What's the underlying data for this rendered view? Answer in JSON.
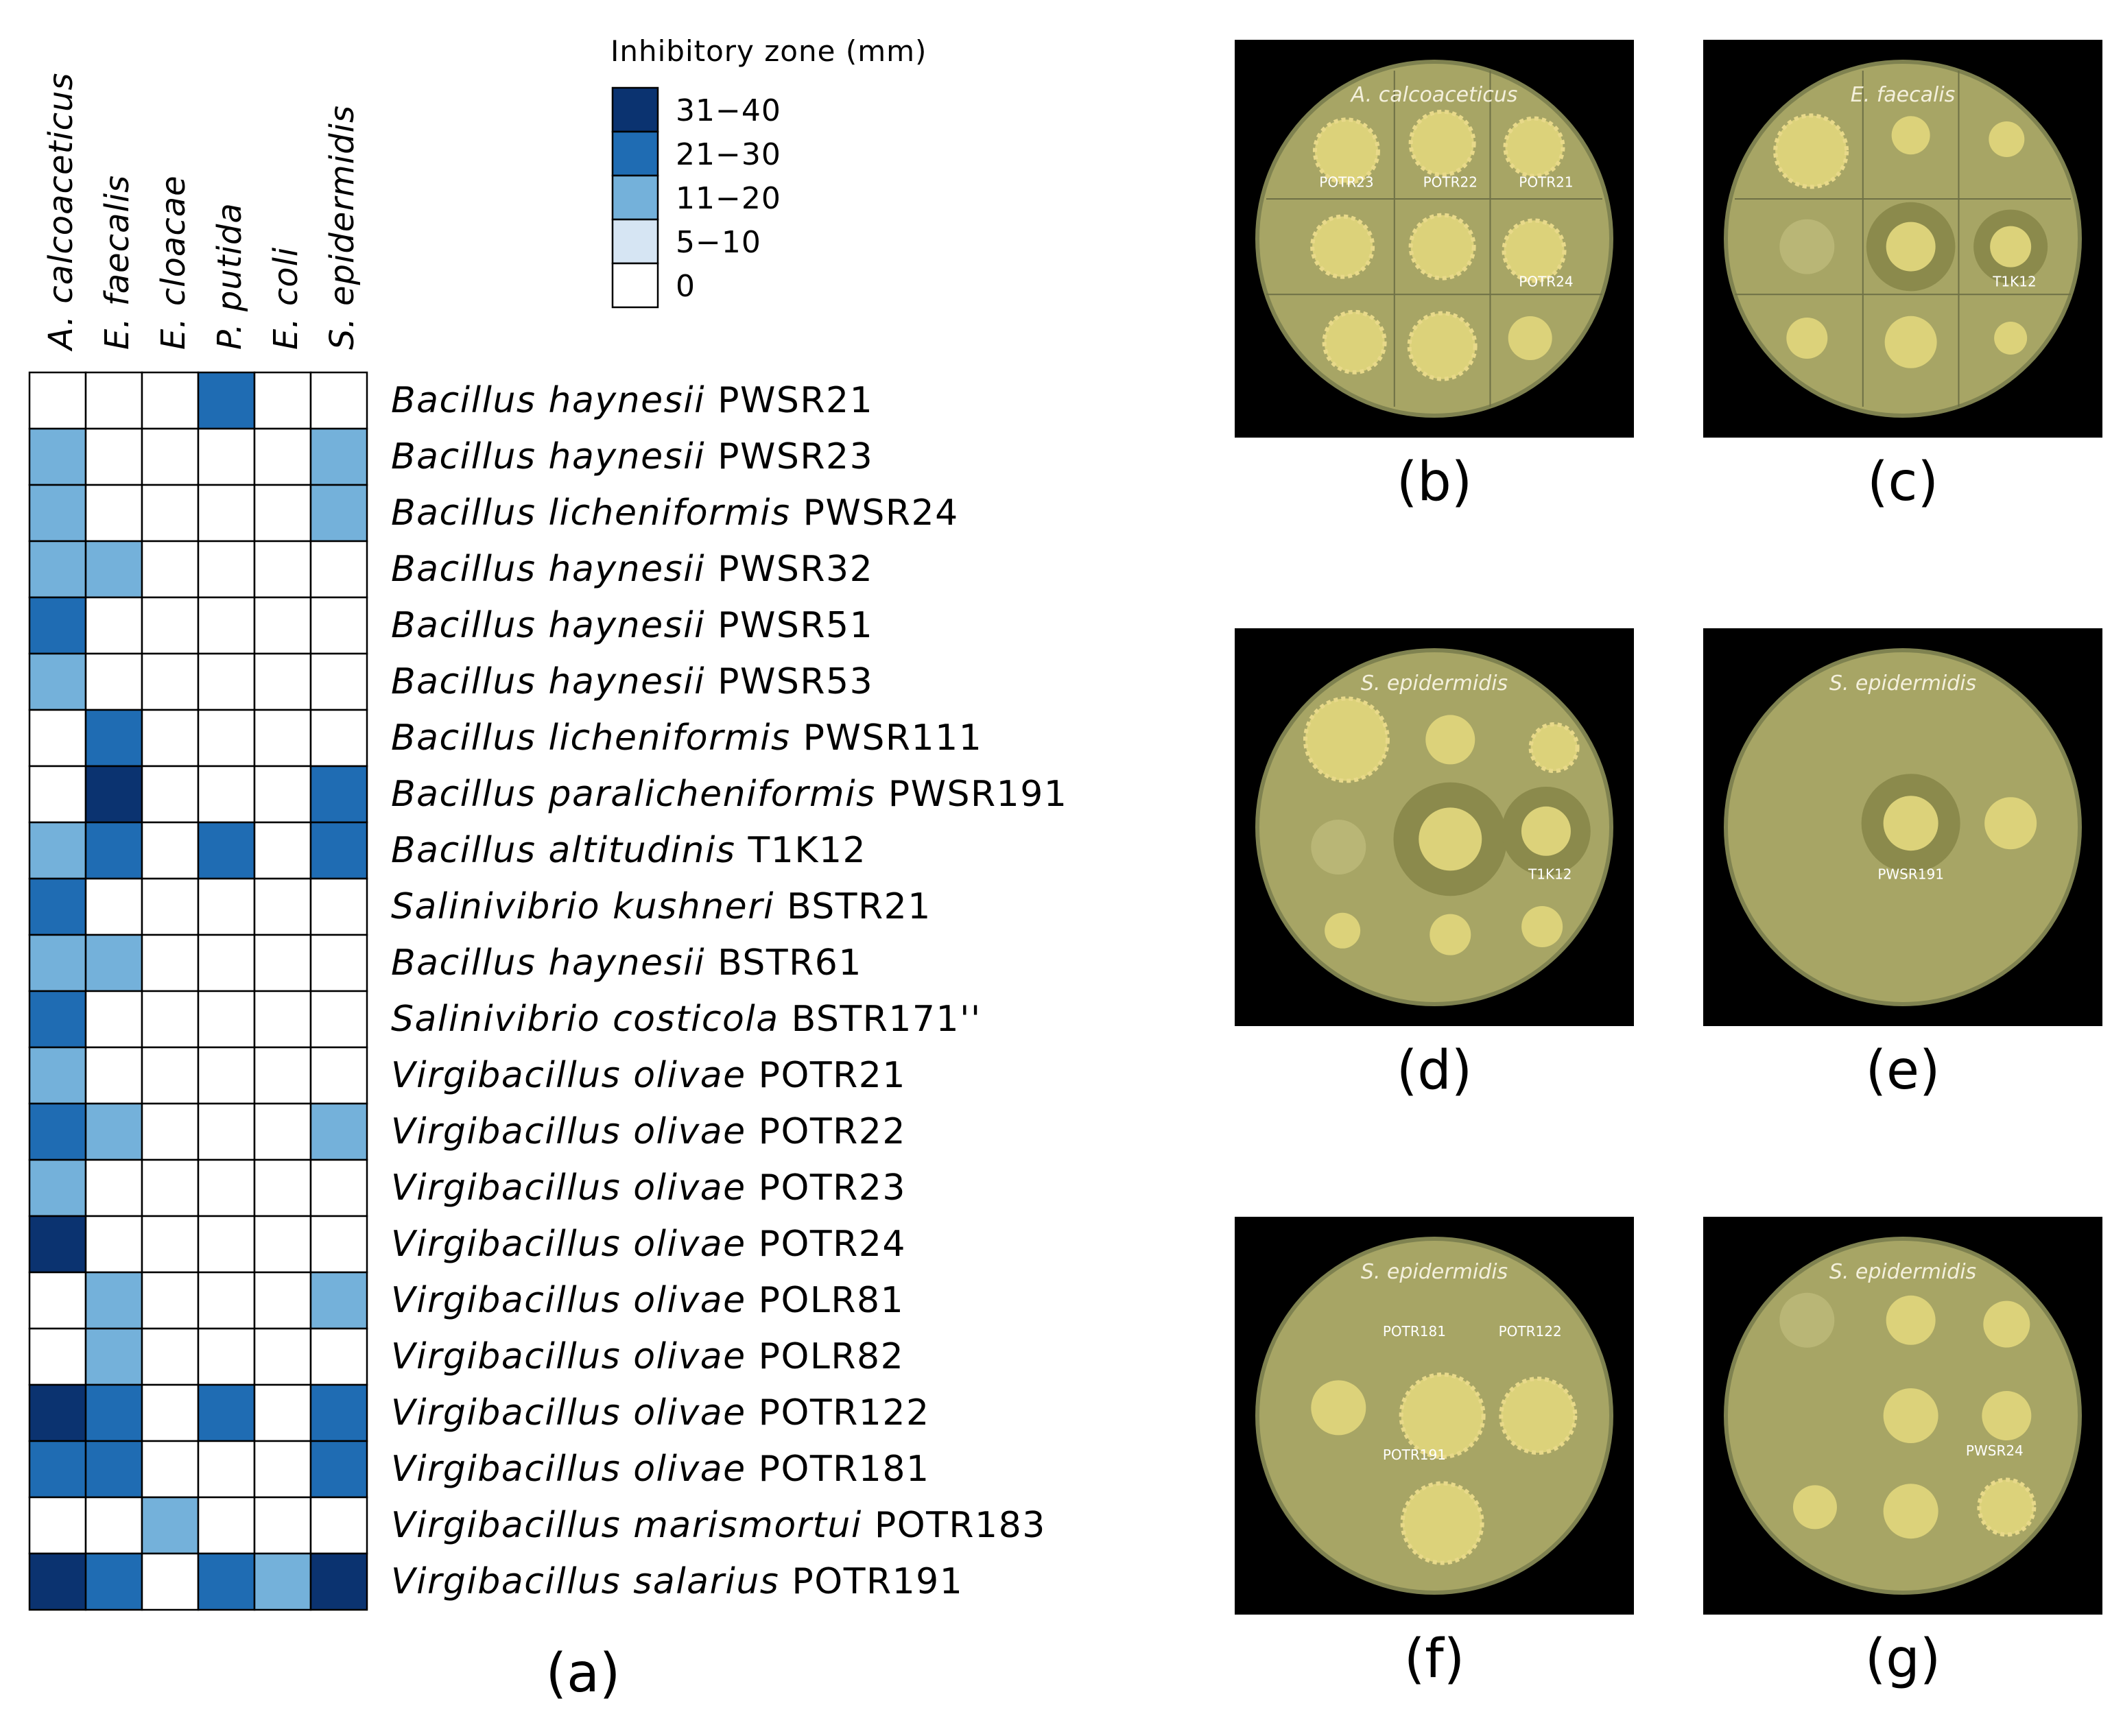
{
  "chart_data": {
    "type": "heatmap",
    "legend_title": "Inhibitory zone (mm)",
    "legend": [
      {
        "label": "31−40",
        "color": "#0b3370"
      },
      {
        "label": "21−30",
        "color": "#1f6cb3"
      },
      {
        "label": "11−20",
        "color": "#74b1da"
      },
      {
        "label": "5−10",
        "color": "#d6e5f3"
      },
      {
        "label": "0",
        "color": "#ffffff"
      }
    ],
    "columns": [
      "A. calcoaceticus",
      "E. faecalis",
      "E. cloacae",
      "P. putida",
      "E. coli",
      "S. epidermidis"
    ],
    "rows": [
      {
        "species": "Bacillus haynesii",
        "strain": "PWSR21",
        "values": [
          0,
          0,
          0,
          2,
          0,
          0
        ]
      },
      {
        "species": "Bacillus haynesii",
        "strain": "PWSR23",
        "values": [
          1,
          0,
          0,
          0,
          0,
          1
        ]
      },
      {
        "species": "Bacillus licheniformis",
        "strain": "PWSR24",
        "values": [
          1,
          0,
          0,
          0,
          0,
          1
        ]
      },
      {
        "species": "Bacillus haynesii",
        "strain": "PWSR32",
        "values": [
          1,
          1,
          0,
          0,
          0,
          0
        ]
      },
      {
        "species": "Bacillus haynesii",
        "strain": "PWSR51",
        "values": [
          2,
          0,
          0,
          0,
          0,
          0
        ]
      },
      {
        "species": "Bacillus haynesii",
        "strain": "PWSR53",
        "values": [
          1,
          0,
          0,
          0,
          0,
          0
        ]
      },
      {
        "species": "Bacillus licheniformis",
        "strain": "PWSR111",
        "values": [
          0,
          2,
          0,
          0,
          0,
          0
        ]
      },
      {
        "species": "Bacillus paralicheniformis",
        "strain": "PWSR191",
        "values": [
          0,
          3,
          0,
          0,
          0,
          2
        ]
      },
      {
        "species": "Bacillus altitudinis",
        "strain": "T1K12",
        "values": [
          1,
          2,
          0,
          2,
          0,
          2
        ]
      },
      {
        "species": "Salinivibrio kushneri",
        "strain": "BSTR21",
        "values": [
          2,
          0,
          0,
          0,
          0,
          0
        ]
      },
      {
        "species": "Bacillus haynesii",
        "strain": "BSTR61",
        "values": [
          1,
          1,
          0,
          0,
          0,
          0
        ]
      },
      {
        "species": "Salinivibrio costicola",
        "strain": "BSTR171''",
        "values": [
          2,
          0,
          0,
          0,
          0,
          0
        ]
      },
      {
        "species": "Virgibacillus olivae",
        "strain": "POTR21",
        "values": [
          1,
          0,
          0,
          0,
          0,
          0
        ]
      },
      {
        "species": "Virgibacillus olivae",
        "strain": "POTR22",
        "values": [
          2,
          1,
          0,
          0,
          0,
          1
        ]
      },
      {
        "species": "Virgibacillus olivae",
        "strain": "POTR23",
        "values": [
          1,
          0,
          0,
          0,
          0,
          0
        ]
      },
      {
        "species": "Virgibacillus olivae",
        "strain": "POTR24",
        "values": [
          3,
          0,
          0,
          0,
          0,
          0
        ]
      },
      {
        "species": "Virgibacillus olivae",
        "strain": "POLR81",
        "values": [
          0,
          1,
          0,
          0,
          0,
          1
        ]
      },
      {
        "species": "Virgibacillus olivae",
        "strain": "POLR82",
        "values": [
          0,
          1,
          0,
          0,
          0,
          0
        ]
      },
      {
        "species": "Virgibacillus olivae",
        "strain": "POTR122",
        "values": [
          3,
          2,
          0,
          2,
          0,
          2
        ]
      },
      {
        "species": "Virgibacillus olivae",
        "strain": "POTR181",
        "values": [
          2,
          2,
          0,
          0,
          0,
          2
        ]
      },
      {
        "species": "Virgibacillus marismortui",
        "strain": "POTR183",
        "values": [
          0,
          0,
          1,
          0,
          0,
          0
        ]
      },
      {
        "species": "Virgibacillus salarius",
        "strain": "POTR191",
        "values": [
          3,
          2,
          0,
          2,
          1,
          3
        ]
      }
    ],
    "value_levels": {
      "0": "0",
      "1": "11−20",
      "2": "21−30",
      "3": "31−40"
    },
    "panel_label": "(a)"
  },
  "photos": [
    {
      "panel": "(b)",
      "title": "A. calcoaceticus",
      "labels": [
        "POTR23",
        "POTR22",
        "POTR21",
        "POTR24"
      ]
    },
    {
      "panel": "(c)",
      "title": "E. faecalis",
      "labels": [
        "T1K12"
      ]
    },
    {
      "panel": "(d)",
      "title": "S. epidermidis",
      "labels": [
        "T1K12"
      ]
    },
    {
      "panel": "(e)",
      "title": "S. epidermidis",
      "labels": [
        "PWSR191"
      ]
    },
    {
      "panel": "(f)",
      "title": "S. epidermidis",
      "labels": [
        "POTR181",
        "POTR122",
        "POTR191"
      ]
    },
    {
      "panel": "(g)",
      "title": "S. epidermidis",
      "labels": [
        "PWSR24"
      ]
    }
  ],
  "colors": {
    "plate_agar": "#a7a565",
    "plate_rim": "#7f8250",
    "colony": "#dcd27a",
    "background": "#000000"
  }
}
